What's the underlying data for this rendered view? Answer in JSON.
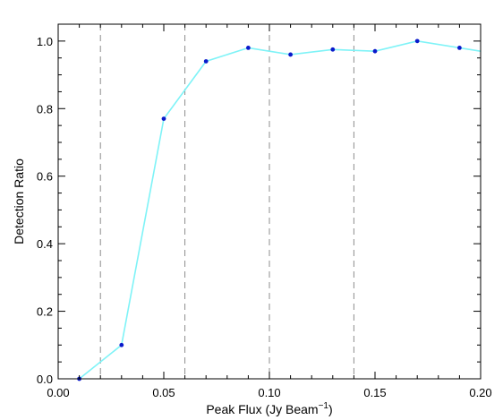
{
  "chart_data": {
    "type": "line",
    "xlabel": "Peak Flux (Jy Beam",
    "xlabel_superscript": "−1",
    "xlabel_suffix": ")",
    "ylabel": "Detection Ratio",
    "xlim": [
      0.0,
      0.2
    ],
    "ylim": [
      0.0,
      1.05
    ],
    "x_ticks": [
      0.0,
      0.05,
      0.1,
      0.15,
      0.2
    ],
    "x_tick_labels": [
      "0.00",
      "0.05",
      "0.10",
      "0.15",
      "0.20"
    ],
    "y_ticks": [
      0.0,
      0.2,
      0.4,
      0.6,
      0.8,
      1.0
    ],
    "y_tick_labels": [
      "0.0",
      "0.2",
      "0.4",
      "0.6",
      "0.8",
      "1.0"
    ],
    "grid": false,
    "vlines_dashed": [
      0.02,
      0.06,
      0.1,
      0.14
    ],
    "series": [
      {
        "x": [
          0.01,
          0.03,
          0.05,
          0.07,
          0.09,
          0.11,
          0.13,
          0.15,
          0.17,
          0.19,
          0.2
        ],
        "y": [
          0.0,
          0.1,
          0.77,
          0.94,
          0.98,
          0.96,
          0.975,
          0.97,
          1.0,
          0.98,
          0.97
        ],
        "marker_points": 10,
        "line_color": "#7ff3f7",
        "marker_color": "#0a1acb"
      }
    ],
    "colors": {
      "axis": "#000000",
      "vline": "#8c8c8c",
      "line": "#7ff3f7",
      "marker": "#0a1acb"
    }
  }
}
